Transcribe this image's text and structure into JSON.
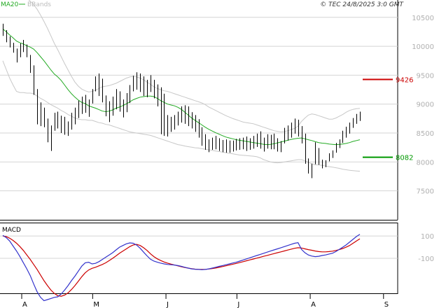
{
  "header": {
    "legend_ma20": "MA20",
    "legend_bbands": "BBands",
    "copyright": "© TEC 24/8/2025 3:0 GMT"
  },
  "price_axis": {
    "ticks": [
      "10500",
      "10000",
      "9500",
      "9000",
      "8500",
      "8000",
      "7500"
    ],
    "ylim": [
      7000,
      10800
    ]
  },
  "levels": [
    {
      "label": "9426",
      "value": 9426,
      "color": "#cc0000"
    },
    {
      "label": "8082",
      "value": 8082,
      "color": "#009900"
    }
  ],
  "macd_panel": {
    "label": "MACD",
    "ticks": [
      "100",
      "-100"
    ],
    "ylim": [
      -420,
      220
    ]
  },
  "time_axis": {
    "labels": [
      "A",
      "M",
      "J",
      "J",
      "A",
      "S"
    ]
  },
  "colors": {
    "ma20": "#22aa22",
    "bbands": "#c8c8c8",
    "candles": "#000000",
    "macd": "#3333cc",
    "signal": "#cc0000",
    "grid": "#d4d4d4",
    "axis_text": "#b0b0b0"
  },
  "chart_data": {
    "type": "line",
    "price": {
      "high": [
        10390,
        10280,
        10170,
        10060,
        9960,
        10050,
        10110,
        10030,
        9850,
        9670,
        9260,
        9030,
        8940,
        8750,
        8630,
        8850,
        8870,
        8800,
        8780,
        8700,
        8850,
        8940,
        9060,
        9130,
        9160,
        9080,
        9260,
        9480,
        9530,
        9440,
        9150,
        9050,
        9130,
        9260,
        9220,
        9080,
        9190,
        9330,
        9490,
        9550,
        9530,
        9480,
        9420,
        9500,
        9420,
        9340,
        9290,
        9180,
        8810,
        8780,
        8810,
        8870,
        8960,
        8980,
        8960,
        8860,
        8810,
        8740,
        8600,
        8480,
        8390,
        8420,
        8450,
        8410,
        8380,
        8390,
        8370,
        8370,
        8400,
        8410,
        8420,
        8440,
        8410,
        8450,
        8490,
        8530,
        8420,
        8480,
        8470,
        8490,
        8410,
        8360,
        8590,
        8630,
        8680,
        8750,
        8730,
        8620,
        8490,
        8060,
        7970,
        8340,
        8240,
        8040,
        8030,
        8150,
        8200,
        8330,
        8390,
        8540,
        8610,
        8680,
        8760,
        8830,
        8870
      ],
      "low": [
        10180,
        10070,
        9980,
        9890,
        9720,
        9810,
        9900,
        9810,
        9540,
        9160,
        8650,
        8620,
        8600,
        8340,
        8190,
        8540,
        8580,
        8500,
        8470,
        8450,
        8560,
        8650,
        8760,
        8830,
        8850,
        8780,
        9010,
        9220,
        9140,
        9030,
        8790,
        8690,
        8800,
        8910,
        8870,
        8770,
        8860,
        9020,
        9220,
        9250,
        9210,
        9140,
        9120,
        9210,
        9100,
        8960,
        8480,
        8450,
        8440,
        8520,
        8560,
        8630,
        8680,
        8660,
        8620,
        8580,
        8520,
        8420,
        8280,
        8210,
        8170,
        8210,
        8220,
        8190,
        8170,
        8160,
        8160,
        8180,
        8200,
        8210,
        8220,
        8190,
        8210,
        8230,
        8260,
        8230,
        8180,
        8230,
        8220,
        8220,
        8180,
        8170,
        8320,
        8370,
        8420,
        8490,
        8440,
        8320,
        7970,
        7800,
        7720,
        7960,
        7950,
        7890,
        7910,
        8010,
        8070,
        8160,
        8240,
        8330,
        8420,
        8490,
        8590,
        8660,
        8710
      ],
      "ma20": [
        10300,
        10250,
        10195,
        10145,
        10090,
        10060,
        10040,
        10010,
        9985,
        9950,
        9890,
        9820,
        9750,
        9670,
        9590,
        9520,
        9470,
        9410,
        9330,
        9250,
        9180,
        9120,
        9070,
        9030,
        9010,
        8970,
        8950,
        8930,
        8905,
        8880,
        8870,
        8880,
        8900,
        8930,
        8950,
        8975,
        9005,
        9040,
        9075,
        9100,
        9120,
        9130,
        9140,
        9140,
        9130,
        9100,
        9060,
        9030,
        9000,
        8985,
        8970,
        8945,
        8910,
        8860,
        8810,
        8760,
        8720,
        8680,
        8640,
        8600,
        8565,
        8535,
        8505,
        8480,
        8455,
        8430,
        8415,
        8400,
        8385,
        8375,
        8365,
        8355,
        8345,
        8335,
        8325,
        8315,
        8305,
        8300,
        8305,
        8315,
        8330,
        8345,
        8360,
        8375,
        8390,
        8400,
        8410,
        8415,
        8400,
        8385,
        8370,
        8350,
        8335,
        8325,
        8320,
        8310,
        8305,
        8300,
        8305,
        8310,
        8320,
        8335,
        8355,
        8370,
        8385
      ],
      "bb_upper": [
        10850,
        10900,
        10950,
        10960,
        10950,
        10920,
        10880,
        10830,
        10780,
        10720,
        10640,
        10540,
        10430,
        10310,
        10180,
        10050,
        9940,
        9820,
        9700,
        9590,
        9480,
        9380,
        9310,
        9260,
        9230,
        9210,
        9220,
        9240,
        9270,
        9300,
        9310,
        9320,
        9340,
        9360,
        9390,
        9420,
        9450,
        9470,
        9480,
        9470,
        9450,
        9420,
        9380,
        9340,
        9300,
        9270,
        9250,
        9230,
        9220,
        9200,
        9180,
        9160,
        9140,
        9120,
        9100,
        9080,
        9060,
        9040,
        9020,
        8990,
        8950,
        8920,
        8890,
        8860,
        8830,
        8800,
        8775,
        8750,
        8730,
        8710,
        8690,
        8680,
        8670,
        8660,
        8640,
        8620,
        8600,
        8580,
        8560,
        8540,
        8530,
        8520,
        8525,
        8540,
        8560,
        8580,
        8620,
        8700,
        8760,
        8810,
        8830,
        8820,
        8800,
        8780,
        8760,
        8740,
        8740,
        8760,
        8790,
        8820,
        8860,
        8890,
        8910,
        8920,
        8925
      ],
      "bb_lower": [
        9750,
        9600,
        9450,
        9330,
        9220,
        9200,
        9200,
        9190,
        9190,
        9180,
        9140,
        9100,
        9070,
        9030,
        8990,
        8960,
        8930,
        8890,
        8860,
        8820,
        8790,
        8760,
        8740,
        8730,
        8730,
        8720,
        8720,
        8700,
        8680,
        8670,
        8650,
        8640,
        8620,
        8600,
        8580,
        8560,
        8540,
        8520,
        8510,
        8500,
        8490,
        8480,
        8470,
        8460,
        8440,
        8420,
        8400,
        8380,
        8360,
        8340,
        8320,
        8300,
        8290,
        8275,
        8265,
        8255,
        8245,
        8240,
        8230,
        8220,
        8210,
        8200,
        8190,
        8180,
        8170,
        8160,
        8150,
        8140,
        8130,
        8120,
        8115,
        8110,
        8105,
        8100,
        8090,
        8070,
        8040,
        8020,
        8000,
        7990,
        7985,
        7990,
        8000,
        8010,
        8020,
        8030,
        8040,
        8040,
        8020,
        7990,
        7970,
        7950,
        7950,
        7940,
        7930,
        7920,
        7910,
        7900,
        7890,
        7875,
        7865,
        7855,
        7850,
        7845,
        7840
      ]
    },
    "macd": {
      "macd": [
        105,
        85,
        55,
        10,
        -35,
        -85,
        -140,
        -195,
        -255,
        -330,
        -400,
        -450,
        -480,
        -470,
        -460,
        -450,
        -445,
        -420,
        -385,
        -345,
        -300,
        -260,
        -215,
        -170,
        -140,
        -135,
        -150,
        -145,
        -130,
        -110,
        -90,
        -70,
        -50,
        -25,
        0,
        15,
        30,
        38,
        35,
        18,
        -10,
        -45,
        -78,
        -108,
        -125,
        -135,
        -143,
        -150,
        -155,
        -158,
        -160,
        -165,
        -172,
        -180,
        -188,
        -195,
        -198,
        -200,
        -202,
        -200,
        -195,
        -188,
        -180,
        -172,
        -165,
        -158,
        -150,
        -142,
        -135,
        -125,
        -115,
        -105,
        -95,
        -85,
        -75,
        -65,
        -55,
        -45,
        -35,
        -25,
        -15,
        -5,
        5,
        15,
        25,
        35,
        40,
        -20,
        -50,
        -70,
        -80,
        -85,
        -82,
        -75,
        -70,
        -62,
        -55,
        -40,
        -20,
        0,
        20,
        45,
        70,
        95,
        115
      ],
      "signal": [
        100,
        95,
        80,
        60,
        35,
        5,
        -30,
        -70,
        -110,
        -155,
        -200,
        -250,
        -300,
        -345,
        -385,
        -415,
        -435,
        -440,
        -430,
        -410,
        -380,
        -345,
        -305,
        -265,
        -230,
        -205,
        -190,
        -180,
        -168,
        -155,
        -140,
        -120,
        -100,
        -78,
        -55,
        -35,
        -15,
        5,
        20,
        25,
        15,
        -5,
        -30,
        -60,
        -85,
        -105,
        -120,
        -133,
        -143,
        -152,
        -160,
        -168,
        -175,
        -182,
        -188,
        -193,
        -197,
        -199,
        -200,
        -199,
        -196,
        -192,
        -187,
        -181,
        -174,
        -167,
        -160,
        -153,
        -146,
        -138,
        -130,
        -122,
        -114,
        -106,
        -98,
        -90,
        -82,
        -74,
        -66,
        -58,
        -50,
        -42,
        -34,
        -26,
        -18,
        -10,
        -5,
        -8,
        -15,
        -22,
        -28,
        -35,
        -40,
        -42,
        -42,
        -40,
        -36,
        -30,
        -22,
        -12,
        0,
        15,
        35,
        55,
        75
      ]
    },
    "x_start": "2025-03-24",
    "x_end": "2025-08-22",
    "x_labels": [
      "A",
      "M",
      "J",
      "J",
      "A",
      "S"
    ],
    "ylim_price": [
      7000,
      10800
    ],
    "ylim_macd": [
      -420,
      220
    ],
    "legend": [
      "MA20",
      "BBands"
    ]
  }
}
